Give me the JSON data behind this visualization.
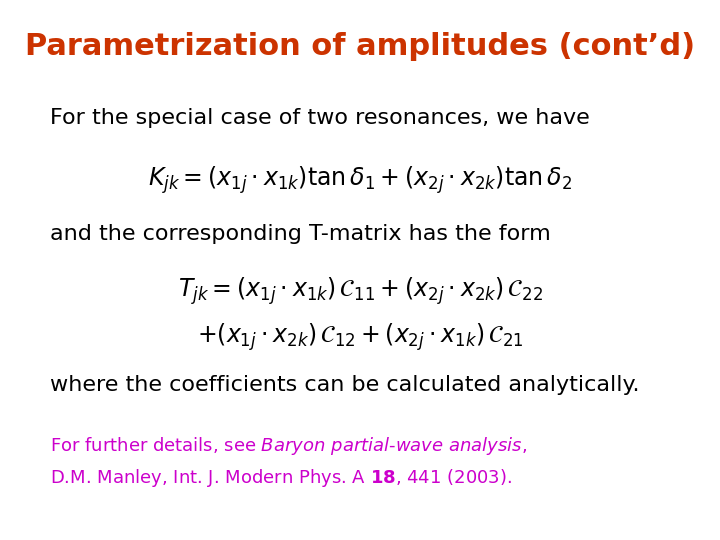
{
  "title": "Parametrization of amplitudes (cont’d)",
  "title_color": "#CC3300",
  "title_fontsize": 22,
  "background_color": "#ffffff",
  "text_color": "#000000",
  "body_fontsize": 16,
  "footnote_color": "#CC00CC",
  "footnote_fontsize": 13,
  "line1": "For the special case of two resonances, we have",
  "eq1": "$K_{jk} = (x_{1j} \\cdot x_{1k})\\tan\\delta_1 + (x_{2j} \\cdot x_{2k})\\tan\\delta_2$",
  "line2": "and the corresponding T-matrix has the form",
  "eq2a": "$T_{jk} = (x_{1j} \\cdot x_{1k})\\,\\mathcal{C}_{11} + (x_{2j} \\cdot x_{2k})\\,\\mathcal{C}_{22}$",
  "eq2b": "$+ (x_{1j} \\cdot x_{2k})\\,\\mathcal{C}_{12} + (x_{2j} \\cdot x_{1k})\\,\\mathcal{C}_{21}$",
  "line3": "where the coefficients can be calculated analytically.",
  "footnote_line1": "For further details, see $\\it{Baryon\\ partial}$-$\\it{wave\\ analysis}$,",
  "footnote_line2": "D.M. Manley, Int. J. Modern Phys. A $\\mathbf{18}$, 441 (2003)."
}
